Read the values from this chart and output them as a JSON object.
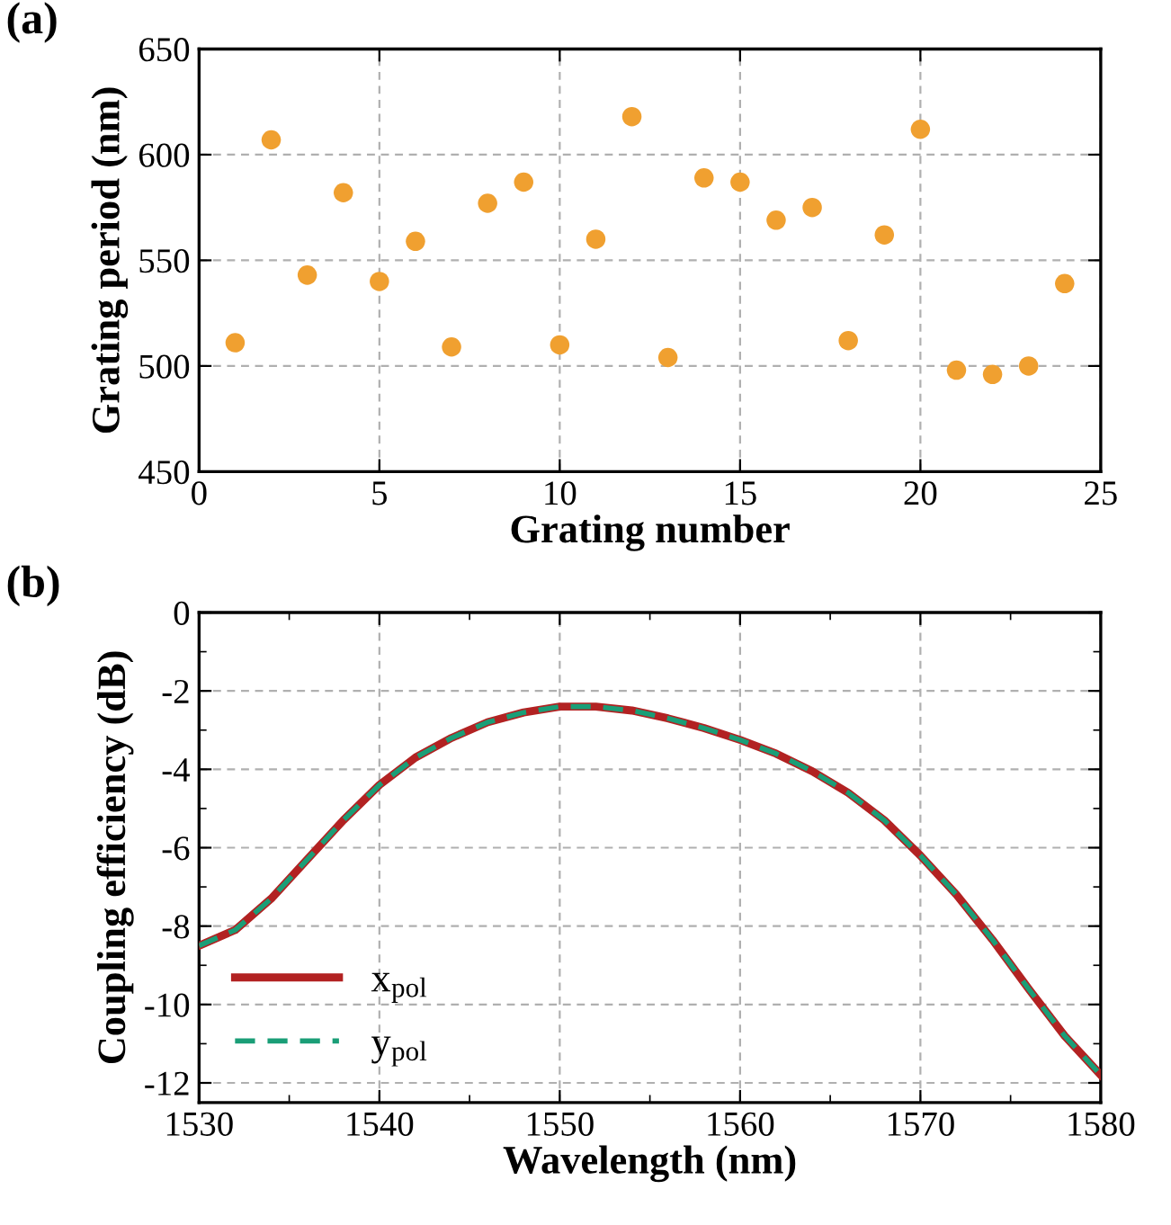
{
  "chart_data": [
    {
      "type": "scatter",
      "annotations": [
        "(a)"
      ],
      "xlabel": "Grating number",
      "ylabel": "Grating period (nm)",
      "x": [
        1,
        2,
        3,
        4,
        5,
        6,
        7,
        8,
        9,
        10,
        11,
        12,
        13,
        14,
        15,
        16,
        17,
        18,
        19,
        20,
        21,
        22,
        23,
        24
      ],
      "series": [
        {
          "color": "#f0a030",
          "values": [
            511,
            607,
            543,
            582,
            540,
            559,
            509,
            577,
            587,
            510,
            560,
            618,
            504,
            589,
            587,
            569,
            575,
            512,
            562,
            612,
            498,
            496,
            500,
            539
          ]
        }
      ],
      "xlim": [
        0,
        25
      ],
      "xticks": [
        0,
        5,
        10,
        15,
        20,
        25
      ],
      "ylim": [
        450,
        650
      ],
      "yticks": [
        450,
        500,
        550,
        600,
        650
      ],
      "grid": true,
      "marker": "circle",
      "legend": false
    },
    {
      "type": "line",
      "annotations": [
        "(b)"
      ],
      "xlabel": "Wavelength (nm)",
      "ylabel": "Coupling efficiency (dB)",
      "x": [
        1530,
        1532,
        1534,
        1536,
        1538,
        1540,
        1542,
        1544,
        1546,
        1548,
        1550,
        1552,
        1554,
        1556,
        1558,
        1560,
        1562,
        1564,
        1566,
        1568,
        1570,
        1572,
        1574,
        1576,
        1578,
        1580
      ],
      "series": [
        {
          "name": "x$_{pol}$",
          "color": "#b22222",
          "line_style": "solid",
          "values": [
            -8.5,
            -8.1,
            -7.3,
            -6.3,
            -5.3,
            -4.4,
            -3.7,
            -3.2,
            -2.8,
            -2.55,
            -2.4,
            -2.4,
            -2.5,
            -2.7,
            -2.95,
            -3.25,
            -3.6,
            -4.05,
            -4.6,
            -5.3,
            -6.2,
            -7.2,
            -8.35,
            -9.6,
            -10.8,
            -11.8
          ]
        },
        {
          "name": "y$_{pol}$",
          "color": "#1a9e77",
          "line_style": "dashed",
          "values": [
            -8.5,
            -8.1,
            -7.3,
            -6.3,
            -5.3,
            -4.4,
            -3.7,
            -3.2,
            -2.8,
            -2.55,
            -2.4,
            -2.4,
            -2.5,
            -2.7,
            -2.95,
            -3.25,
            -3.6,
            -4.05,
            -4.6,
            -5.3,
            -6.2,
            -7.2,
            -8.35,
            -9.6,
            -10.8,
            -11.8
          ]
        }
      ],
      "xlim": [
        1530,
        1580
      ],
      "xticks": [
        1530,
        1540,
        1550,
        1560,
        1570,
        1580
      ],
      "ylim": [
        -12.5,
        0
      ],
      "yticks": [
        {
          "value": -12,
          "label": "-12"
        },
        {
          "value": -10,
          "label": "-10"
        },
        {
          "value": -8,
          "label": "-8"
        },
        {
          "value": -6,
          "label": "-6"
        },
        {
          "value": -4,
          "label": "-4"
        },
        {
          "value": -2,
          "label": "-2"
        },
        0
      ],
      "grid": true,
      "marker": "none",
      "legend": "bottom left"
    }
  ]
}
